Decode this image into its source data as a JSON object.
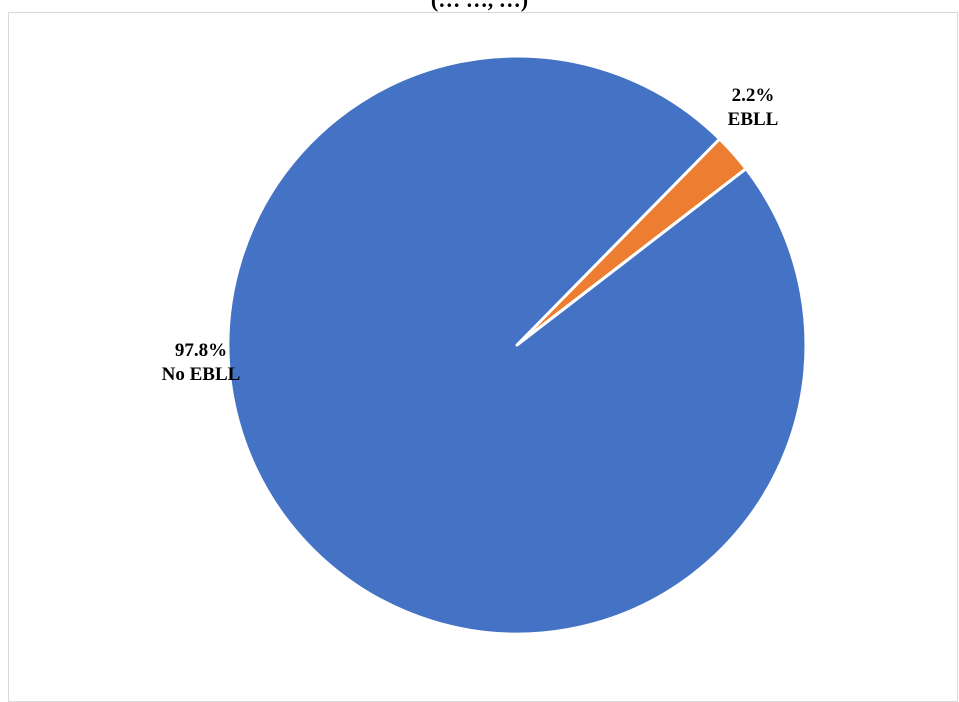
{
  "chart_data": {
    "type": "pie",
    "title": "(… …, …)",
    "slices": [
      {
        "name": "EBLL",
        "value": 2.2,
        "label_value": "2.2%",
        "label_name": "EBLL",
        "color": "#ED7D31"
      },
      {
        "name": "No EBLL",
        "value": 97.8,
        "label_value": "97.8%",
        "label_name": "No EBLL",
        "color": "#4472C4"
      }
    ],
    "legend": "none"
  }
}
